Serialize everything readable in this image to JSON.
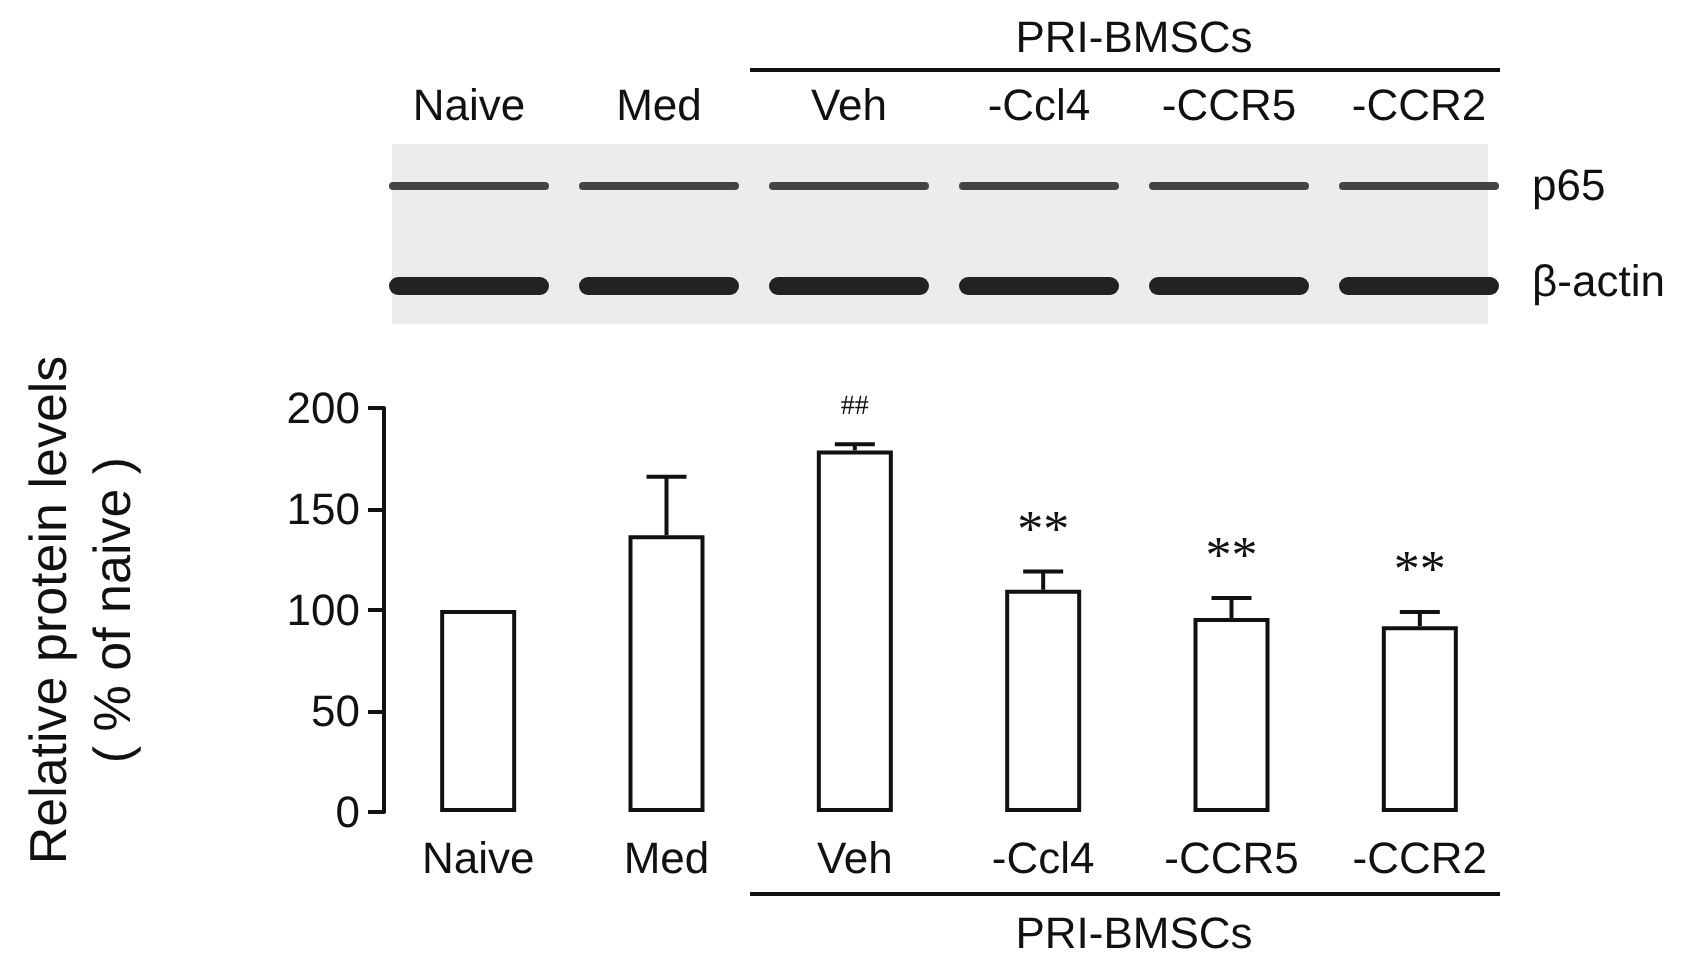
{
  "chart_data": {
    "type": "bar",
    "ylabel": "Relative protein levels\n( % of naive )",
    "categories": [
      "Naive",
      "Med",
      "Veh",
      "-Ccl4",
      "-CCR5",
      "-CCR2"
    ],
    "values": [
      100,
      137,
      179,
      110,
      96,
      92
    ],
    "errors": [
      null,
      [
        137,
        166
      ],
      [
        179,
        182
      ],
      [
        110,
        119
      ],
      [
        96,
        106
      ],
      [
        92,
        99
      ]
    ],
    "color": "#ffffff",
    "ylim": [
      0,
      200
    ],
    "yticks": [
      0,
      50,
      100,
      150,
      200
    ],
    "grid": false,
    "annotations": [
      {
        "text": "##",
        "x": "Veh",
        "y": 182
      },
      {
        "text": "**",
        "x": "-Ccl4",
        "y": 119
      },
      {
        "text": "**",
        "x": "-CCR5",
        "y": 106
      },
      {
        "text": "**",
        "x": "-CCR2",
        "y": 99
      },
      "Naive",
      "Med",
      "Veh",
      "-Ccl4",
      "-CCR5",
      "-CCR2",
      "PRI-BMSCs",
      "p65",
      "β-actin",
      "PRI-BMSCs"
    ]
  }
}
